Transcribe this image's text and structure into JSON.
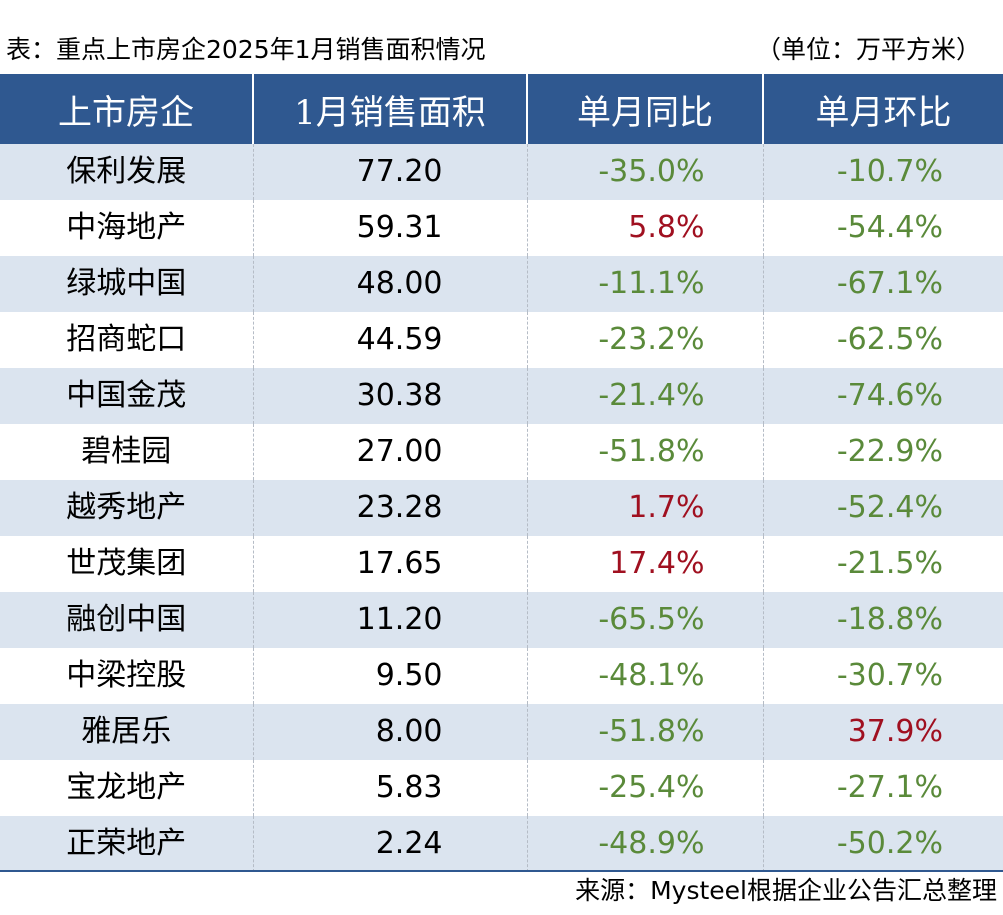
{
  "caption": {
    "title": "表：重点上市房企2025年1月销售面积情况",
    "unit": "（单位：万平方米）"
  },
  "columns": [
    "上市房企",
    "1月销售面积",
    "单月同比",
    "单月环比"
  ],
  "rows": [
    {
      "company": "保利发展",
      "area": "77.20",
      "yoy": "-35.0%",
      "mom": "-10.7%"
    },
    {
      "company": "中海地产",
      "area": "59.31",
      "yoy": "5.8%",
      "mom": "-54.4%"
    },
    {
      "company": "绿城中国",
      "area": "48.00",
      "yoy": "-11.1%",
      "mom": "-67.1%"
    },
    {
      "company": "招商蛇口",
      "area": "44.59",
      "yoy": "-23.2%",
      "mom": "-62.5%"
    },
    {
      "company": "中国金茂",
      "area": "30.38",
      "yoy": "-21.4%",
      "mom": "-74.6%"
    },
    {
      "company": "碧桂园",
      "area": "27.00",
      "yoy": "-51.8%",
      "mom": "-22.9%"
    },
    {
      "company": "越秀地产",
      "area": "23.28",
      "yoy": "1.7%",
      "mom": "-52.4%"
    },
    {
      "company": "世茂集团",
      "area": "17.65",
      "yoy": "17.4%",
      "mom": "-21.5%"
    },
    {
      "company": "融创中国",
      "area": "11.20",
      "yoy": "-65.5%",
      "mom": "-18.8%"
    },
    {
      "company": "中梁控股",
      "area": "9.50",
      "yoy": "-48.1%",
      "mom": "-30.7%"
    },
    {
      "company": "雅居乐",
      "area": "8.00",
      "yoy": "-51.8%",
      "mom": "37.9%"
    },
    {
      "company": "宝龙地产",
      "area": "5.83",
      "yoy": "-25.4%",
      "mom": "-27.1%"
    },
    {
      "company": "正荣地产",
      "area": "2.24",
      "yoy": "-48.9%",
      "mom": "-50.2%"
    }
  ],
  "colors": {
    "header_bg": "#2f5890",
    "stripe_bg": "#dbe4ef",
    "negative": "#5a8a3a",
    "positive": "#a01020"
  },
  "source": "来源：Mysteel根据企业公告汇总整理"
}
